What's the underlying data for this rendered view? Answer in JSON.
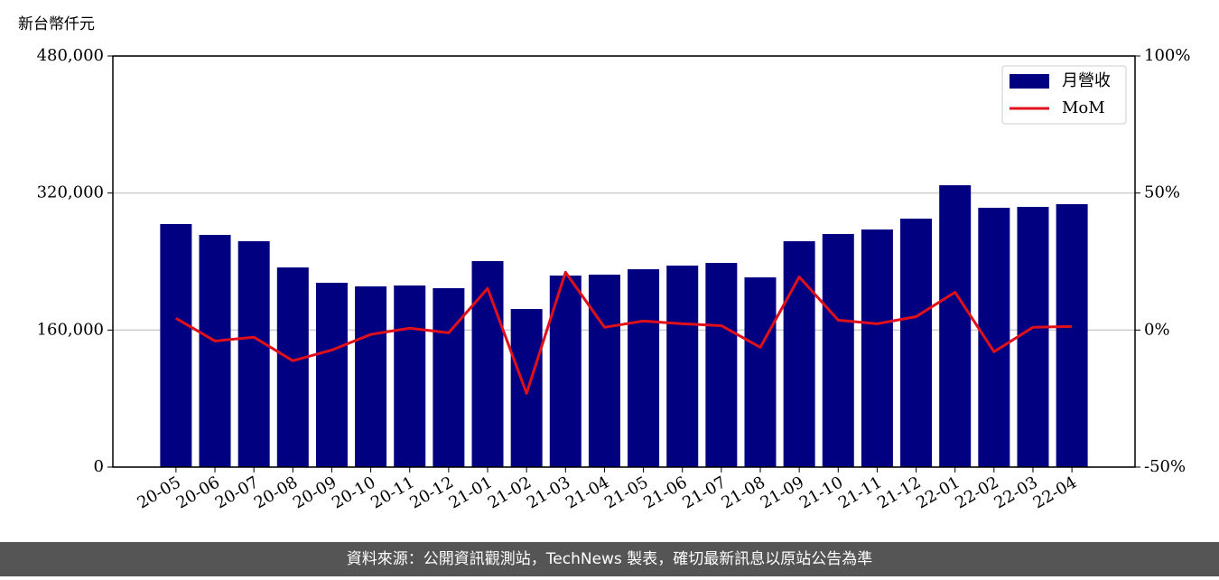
{
  "chart_data": {
    "type": "bar",
    "y_label": "新台幣仟元",
    "source": "資料來源：公開資訊觀測站，TechNews 製表，確切最新訊息以原站公告為準",
    "categories": [
      "20-05",
      "20-06",
      "20-07",
      "20-08",
      "20-09",
      "20-10",
      "20-11",
      "20-12",
      "21-01",
      "21-02",
      "21-03",
      "21-04",
      "21-05",
      "21-06",
      "21-07",
      "21-08",
      "21-09",
      "21-10",
      "21-11",
      "21-12",
      "22-01",
      "22-02",
      "22-03",
      "22-04"
    ],
    "series": [
      {
        "name": "月營收",
        "type": "bar",
        "axis": "y",
        "color": "#000080",
        "values": [
          283800,
          271100,
          263700,
          233100,
          215200,
          211000,
          212000,
          208900,
          240500,
          184600,
          223600,
          224700,
          231000,
          235300,
          238400,
          221500,
          263700,
          272200,
          277400,
          290100,
          329100,
          302800,
          303800,
          307000
        ]
      },
      {
        "name": "MoM",
        "type": "line",
        "axis": "y2",
        "color": "#e0101a",
        "values": [
          4.3,
          -4.0,
          -2.6,
          -11.2,
          -7.3,
          -1.6,
          0.7,
          -1.0,
          15.2,
          -23.1,
          21.1,
          1.0,
          3.3,
          2.3,
          1.6,
          -6.3,
          19.4,
          3.6,
          2.3,
          4.9,
          13.8,
          -7.9,
          1.0,
          1.3
        ]
      }
    ],
    "ylim": [
      0,
      480000
    ],
    "yticks": [
      0,
      {
        "value": 160000,
        "label": "160,000"
      },
      {
        "value": 320000,
        "label": "320,000"
      },
      {
        "value": 480000,
        "label": "480,000"
      }
    ],
    "y2lim": [
      -50,
      100
    ],
    "y2ticks": [
      {
        "value": -50,
        "label": "-50%"
      },
      {
        "value": 0,
        "label": "0%"
      },
      {
        "value": 50,
        "label": "50%"
      },
      {
        "value": 100,
        "label": "100%"
      }
    ],
    "grid": true,
    "legend": "upper-right"
  }
}
